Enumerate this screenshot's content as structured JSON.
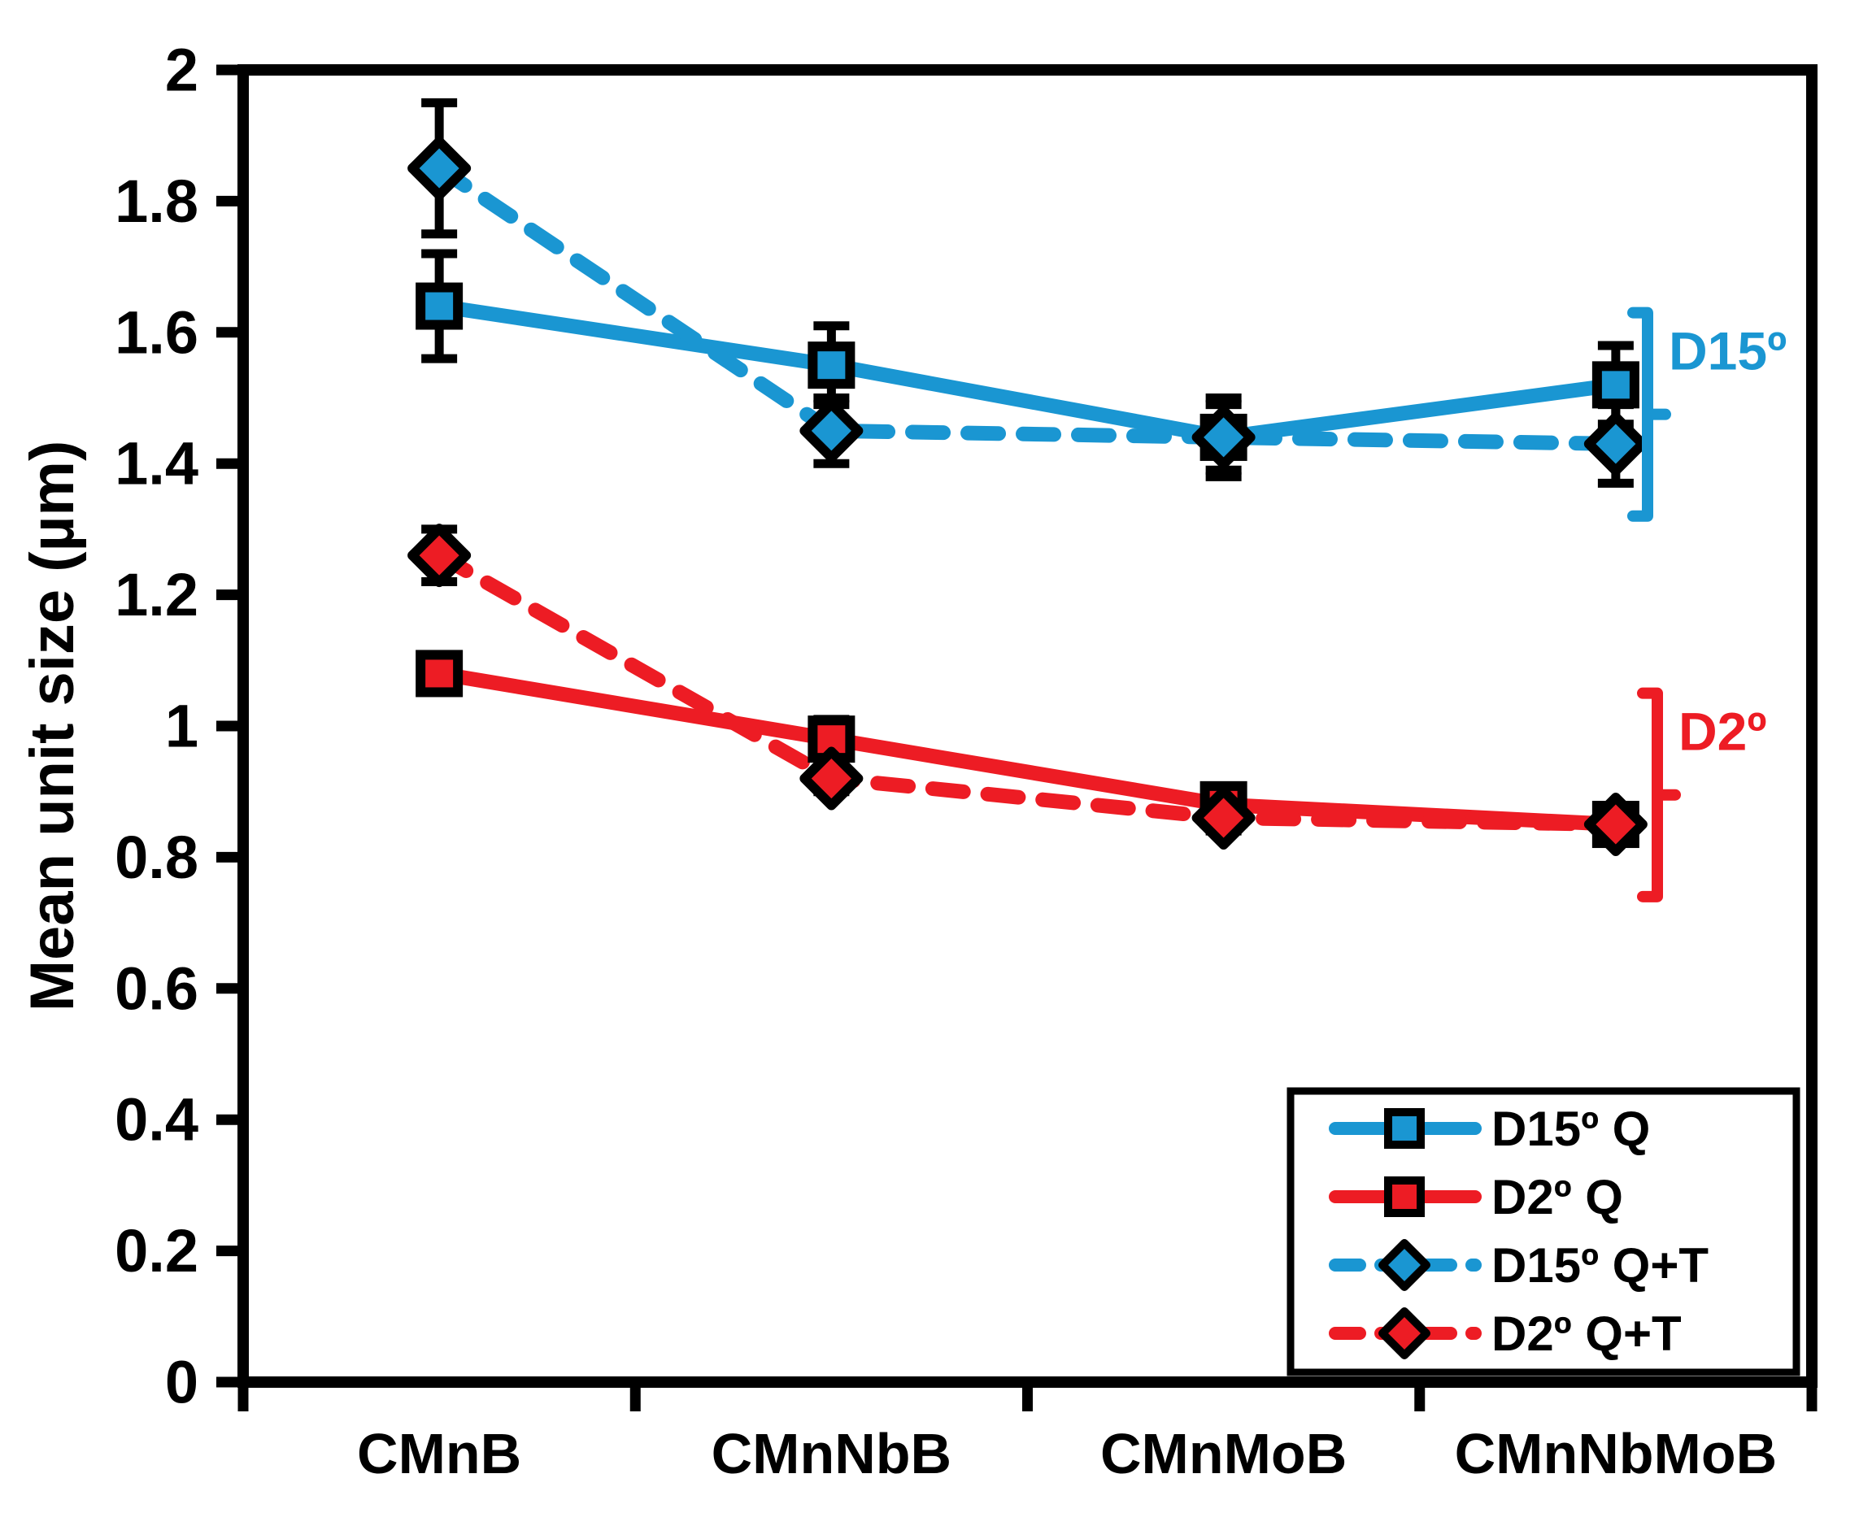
{
  "colors": {
    "blue": "#1A96D2",
    "red": "#ED1C24",
    "black": "#000000",
    "background": "#FFFFFF"
  },
  "chart_data": {
    "type": "line",
    "title": "",
    "xlabel": "",
    "ylabel": "Mean unit size (µm)",
    "categories": [
      "CMnB",
      "CMnNbB",
      "CMnMoB",
      "CMnNbMoB"
    ],
    "ylim": [
      0,
      2
    ],
    "ytick_step": 0.2,
    "ytick_labels": [
      "0",
      "0.2",
      "0.4",
      "0.6",
      "0.8",
      "1",
      "1.2",
      "1.4",
      "1.6",
      "1.8",
      "2"
    ],
    "grid": false,
    "legend_position": "lower right",
    "series": [
      {
        "name": "D15º Q",
        "color": "blue",
        "line": "solid",
        "marker": "square",
        "values": [
          1.64,
          1.55,
          1.44,
          1.52
        ],
        "errors": [
          0.08,
          0.06,
          0.05,
          0.06
        ]
      },
      {
        "name": "D2º Q",
        "color": "red",
        "line": "solid",
        "marker": "square",
        "values": [
          1.08,
          0.98,
          0.88,
          0.85
        ],
        "errors": [
          0.02,
          0.03,
          0.02,
          0.02
        ]
      },
      {
        "name": "D15º Q+T",
        "color": "blue",
        "line": "dashed",
        "marker": "diamond",
        "values": [
          1.85,
          1.45,
          1.44,
          1.43
        ],
        "errors": [
          0.1,
          0.05,
          0.06,
          0.06
        ]
      },
      {
        "name": "D2º Q+T",
        "color": "red",
        "line": "dashed",
        "marker": "diamond",
        "values": [
          1.26,
          0.92,
          0.86,
          0.85
        ],
        "errors": [
          0.04,
          0.02,
          0.02,
          0.02
        ]
      }
    ],
    "annotations": [
      {
        "text": "D15º",
        "color": "blue",
        "value_range": [
          1.63,
          1.32
        ]
      },
      {
        "text": "D2º",
        "color": "red",
        "value_range": [
          1.05,
          0.74
        ]
      }
    ]
  }
}
